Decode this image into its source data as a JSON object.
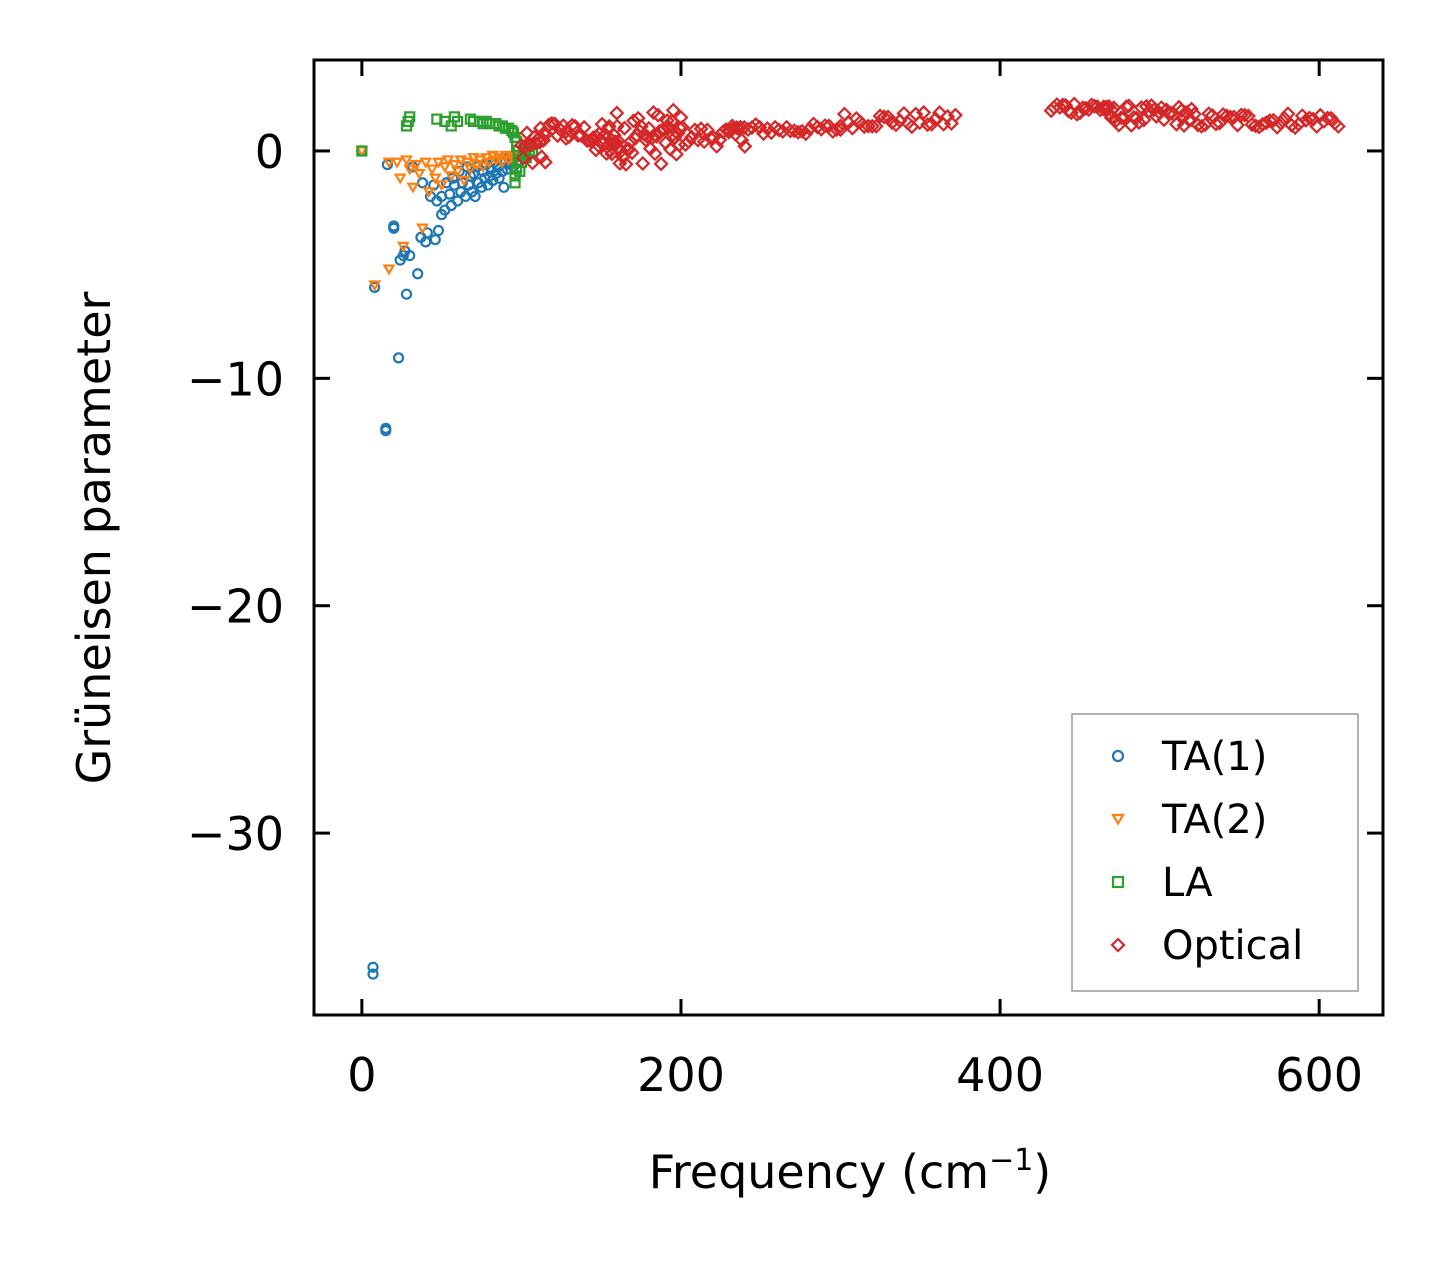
{
  "chart_data": {
    "type": "scatter",
    "xlabel": "Frequency (cm",
    "xlabel_sup": "−1",
    "xlabel_end": ")",
    "ylabel": "Grüneisen parameter",
    "xlim": [
      -30,
      640
    ],
    "ylim": [
      -38,
      4
    ],
    "x_ticks": [
      {
        "value": 0,
        "label": "0"
      },
      {
        "value": 200,
        "label": "200"
      },
      {
        "value": 400,
        "label": "400"
      },
      {
        "value": 600,
        "label": "600"
      }
    ],
    "y_ticks": [
      {
        "value": 0,
        "label": "0"
      },
      {
        "value": -10,
        "label": "−10"
      },
      {
        "value": -20,
        "label": "−20"
      },
      {
        "value": -30,
        "label": "−30"
      }
    ],
    "legend_position": "lower-right",
    "series": [
      {
        "name": "TA(1)",
        "marker": "circle",
        "color": "#1f77b4",
        "points": [
          [
            0,
            0
          ],
          [
            7,
            -36.2
          ],
          [
            7,
            -35.9
          ],
          [
            8,
            -6
          ],
          [
            15,
            -12.3
          ],
          [
            15,
            -12.2
          ],
          [
            16,
            -0.6
          ],
          [
            20,
            -3.4
          ],
          [
            20,
            -3.3
          ],
          [
            23,
            -9.1
          ],
          [
            24,
            -4.8
          ],
          [
            26,
            -4.6
          ],
          [
            27,
            -4.4
          ],
          [
            28,
            -6.3
          ],
          [
            30,
            -4.6
          ],
          [
            32,
            -0.7
          ],
          [
            35,
            -5.4
          ],
          [
            37,
            -3.8
          ],
          [
            38,
            -1.4
          ],
          [
            40,
            -4
          ],
          [
            41,
            -3.6
          ],
          [
            43,
            -2
          ],
          [
            45,
            -1.5
          ],
          [
            46,
            -3.9
          ],
          [
            47,
            -2.2
          ],
          [
            48,
            -3.5
          ],
          [
            50,
            -2
          ],
          [
            50,
            -2.8
          ],
          [
            52,
            -2.6
          ],
          [
            53,
            -1.4
          ],
          [
            55,
            -1.9
          ],
          [
            56,
            -2.4
          ],
          [
            57,
            -1.2
          ],
          [
            58,
            -1.5
          ],
          [
            60,
            -2.2
          ],
          [
            61,
            -0.9
          ],
          [
            62,
            -1.8
          ],
          [
            63,
            -1.4
          ],
          [
            65,
            -2
          ],
          [
            66,
            -0.7
          ],
          [
            67,
            -1.5
          ],
          [
            68,
            -1.1
          ],
          [
            69,
            -1.8
          ],
          [
            70,
            -1
          ],
          [
            71,
            -2
          ],
          [
            72,
            -0.7
          ],
          [
            73,
            -1.4
          ],
          [
            75,
            -1.6
          ],
          [
            76,
            -0.9
          ],
          [
            77,
            -1.2
          ],
          [
            78,
            -0.6
          ],
          [
            79,
            -1.5
          ],
          [
            80,
            -1.1
          ],
          [
            81,
            -0.8
          ],
          [
            82,
            -1.3
          ],
          [
            83,
            -0.5
          ],
          [
            84,
            -1
          ],
          [
            85,
            -0.7
          ],
          [
            86,
            -1.2
          ],
          [
            87,
            -0.4
          ],
          [
            88,
            -0.9
          ],
          [
            89,
            -1.6
          ],
          [
            90,
            -0.5
          ],
          [
            91,
            -0.8
          ],
          [
            92,
            -0.3
          ],
          [
            93,
            -0.6
          ],
          [
            94,
            -0.4
          ],
          [
            95,
            -0.7
          ],
          [
            96,
            -0.3
          ],
          [
            97,
            -0.5
          ]
        ]
      },
      {
        "name": "TA(2)",
        "marker": "triangle-down",
        "color": "#ff7f0e",
        "points": [
          [
            0,
            0
          ],
          [
            8,
            -5.9
          ],
          [
            17,
            -5.2
          ],
          [
            17,
            -0.5
          ],
          [
            22,
            -0.5
          ],
          [
            24,
            -1.2
          ],
          [
            26,
            -4.2
          ],
          [
            28,
            -0.4
          ],
          [
            30,
            -0.8
          ],
          [
            32,
            -1.6
          ],
          [
            34,
            -0.6
          ],
          [
            36,
            -1
          ],
          [
            38,
            -3.4
          ],
          [
            40,
            -0.5
          ],
          [
            42,
            -1.8
          ],
          [
            44,
            -0.8
          ],
          [
            46,
            -1.2
          ],
          [
            48,
            -0.5
          ],
          [
            50,
            -1.5
          ],
          [
            52,
            -0.7
          ],
          [
            54,
            -0.4
          ],
          [
            56,
            -1.1
          ],
          [
            58,
            -0.6
          ],
          [
            60,
            -0.9
          ],
          [
            62,
            -0.4
          ],
          [
            64,
            -1.3
          ],
          [
            66,
            -0.5
          ],
          [
            68,
            -0.8
          ],
          [
            70,
            -0.3
          ],
          [
            72,
            -0.6
          ],
          [
            74,
            -0.4
          ],
          [
            76,
            -0.7
          ],
          [
            78,
            -0.3
          ],
          [
            80,
            -0.5
          ],
          [
            82,
            -0.2
          ],
          [
            84,
            -0.4
          ],
          [
            86,
            -0.3
          ],
          [
            88,
            -0.5
          ],
          [
            90,
            -0.2
          ],
          [
            92,
            -0.4
          ],
          [
            94,
            -0.3
          ],
          [
            96,
            -0.2
          ]
        ]
      },
      {
        "name": "LA",
        "marker": "square",
        "color": "#2ca02c",
        "points": [
          [
            0,
            0
          ],
          [
            28,
            1.1
          ],
          [
            29,
            1.3
          ],
          [
            30,
            1.5
          ],
          [
            47,
            1.4
          ],
          [
            52,
            1.3
          ],
          [
            56,
            1.1
          ],
          [
            58,
            1.5
          ],
          [
            60,
            1.3
          ],
          [
            68,
            1.4
          ],
          [
            70,
            1.3
          ],
          [
            74,
            1.3
          ],
          [
            76,
            1.2
          ],
          [
            78,
            1.3
          ],
          [
            80,
            1.2
          ],
          [
            84,
            1.2
          ],
          [
            86,
            1.1
          ],
          [
            88,
            1.1
          ],
          [
            90,
            1
          ],
          [
            92,
            1
          ],
          [
            94,
            0.9
          ],
          [
            95,
            0.8
          ],
          [
            96,
            0.6
          ],
          [
            97,
            0.4
          ],
          [
            97,
            0.2
          ],
          [
            98,
            0
          ],
          [
            98,
            -0.2
          ],
          [
            98,
            -0.5
          ],
          [
            97,
            -0.8
          ],
          [
            96,
            -1.1
          ],
          [
            96,
            -1.4
          ],
          [
            99,
            -0.9
          ],
          [
            100,
            -0.5
          ],
          [
            101,
            -0.2
          ],
          [
            102,
            0.1
          ],
          [
            103,
            -0.3
          ],
          [
            104,
            0.2
          ],
          [
            105,
            -0.1
          ],
          [
            106,
            0.3
          ],
          [
            107,
            0
          ]
        ]
      },
      {
        "name": "Optical",
        "marker": "diamond",
        "color": "#d62728",
        "ranges": [
          {
            "x0": 100,
            "x1": 115,
            "y0": -0.8,
            "y1": 0.8,
            "n": 14
          },
          {
            "x0": 112,
            "x1": 128,
            "y0": 0.6,
            "y1": 1.3,
            "n": 10
          },
          {
            "x0": 128,
            "x1": 160,
            "y0": 0.3,
            "y1": 1.2,
            "n": 18
          },
          {
            "x0": 145,
            "x1": 160,
            "y0": -0.2,
            "y1": 0.6,
            "n": 10
          },
          {
            "x0": 155,
            "x1": 200,
            "y0": -0.6,
            "y1": 1.8,
            "n": 48
          },
          {
            "x0": 195,
            "x1": 240,
            "y0": 0.2,
            "y1": 1.1,
            "n": 24
          },
          {
            "x0": 230,
            "x1": 300,
            "y0": 0.7,
            "y1": 1.2,
            "n": 30
          },
          {
            "x0": 300,
            "x1": 372,
            "y0": 1.0,
            "y1": 1.7,
            "n": 30
          },
          {
            "x0": 432,
            "x1": 470,
            "y0": 1.6,
            "y1": 2.2,
            "n": 22
          },
          {
            "x0": 465,
            "x1": 520,
            "y0": 1.1,
            "y1": 2.0,
            "n": 36
          },
          {
            "x0": 515,
            "x1": 612,
            "y0": 1.0,
            "y1": 1.7,
            "n": 44
          }
        ]
      }
    ]
  }
}
